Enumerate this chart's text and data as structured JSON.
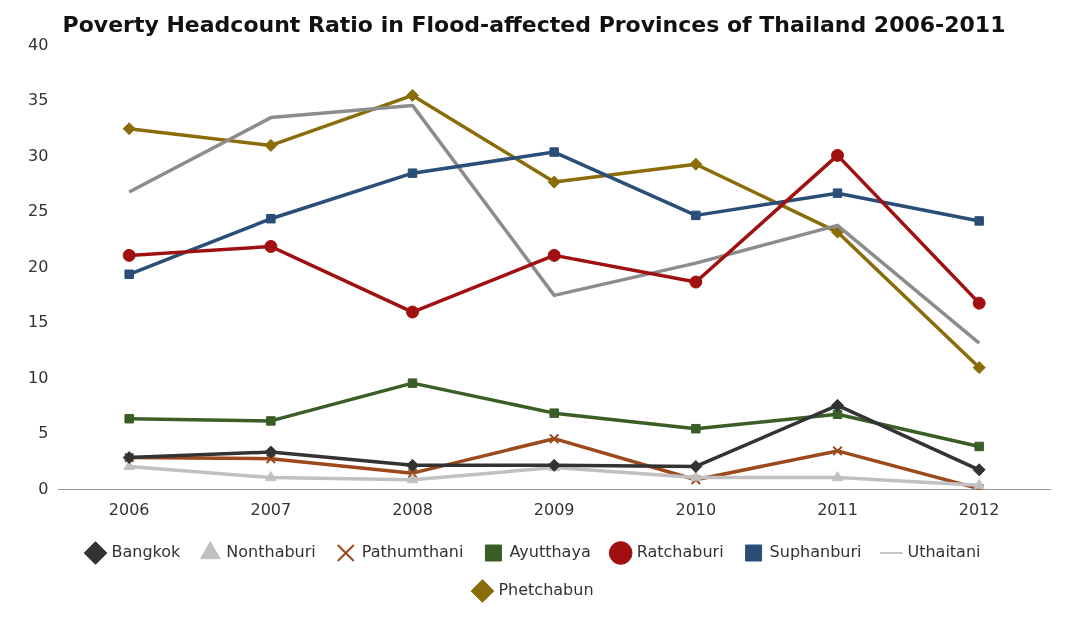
{
  "chart_data": {
    "type": "line",
    "title": "Poverty Headcount Ratio in Flood-affected Provinces of Thailand 2006-2011",
    "categories": [
      "2006",
      "2007",
      "2008",
      "2009",
      "2010",
      "2011",
      "2012"
    ],
    "ylim": [
      0,
      40
    ],
    "yticks": [
      0,
      5,
      10,
      15,
      20,
      25,
      30,
      35,
      40
    ],
    "grid": false,
    "legend": "bottom",
    "series": [
      {
        "name": "Bangkok",
        "color": "#333333",
        "marker": "diamond",
        "values": [
          2.9,
          3.4,
          2.2,
          2.2,
          2.1,
          7.6,
          1.8
        ]
      },
      {
        "name": "Nonthaburi",
        "color": "#c0c0c0",
        "marker": "triangle",
        "values": [
          2.1,
          1.1,
          0.9,
          2.0,
          1.1,
          1.1,
          0.4
        ]
      },
      {
        "name": "Pathumthani",
        "color": "#9c4a1c",
        "marker": "cross",
        "values": [
          2.9,
          2.8,
          1.5,
          4.6,
          0.9,
          3.5,
          0.1
        ]
      },
      {
        "name": "Ayutthaya",
        "color": "#3a5e26",
        "marker": "square",
        "values": [
          6.4,
          6.2,
          9.6,
          6.9,
          5.5,
          6.8,
          3.9
        ]
      },
      {
        "name": "Ratchaburi",
        "color": "#a01010",
        "marker": "circle",
        "values": [
          21.1,
          21.9,
          16.0,
          21.1,
          18.7,
          30.1,
          16.8
        ]
      },
      {
        "name": "Suphanburi",
        "color": "#2a4e78",
        "marker": "square",
        "values": [
          19.4,
          24.4,
          28.5,
          30.4,
          24.7,
          26.7,
          24.2
        ]
      },
      {
        "name": "Uthaitani",
        "color": "#8c8c8c",
        "marker": "none",
        "values": [
          26.8,
          33.5,
          34.6,
          17.5,
          20.4,
          23.8,
          13.2
        ]
      },
      {
        "name": "Phetchabun",
        "color": "#8b6c0a",
        "marker": "diamond",
        "values": [
          32.5,
          31.0,
          35.5,
          27.7,
          29.3,
          23.2,
          11.0
        ]
      }
    ]
  }
}
